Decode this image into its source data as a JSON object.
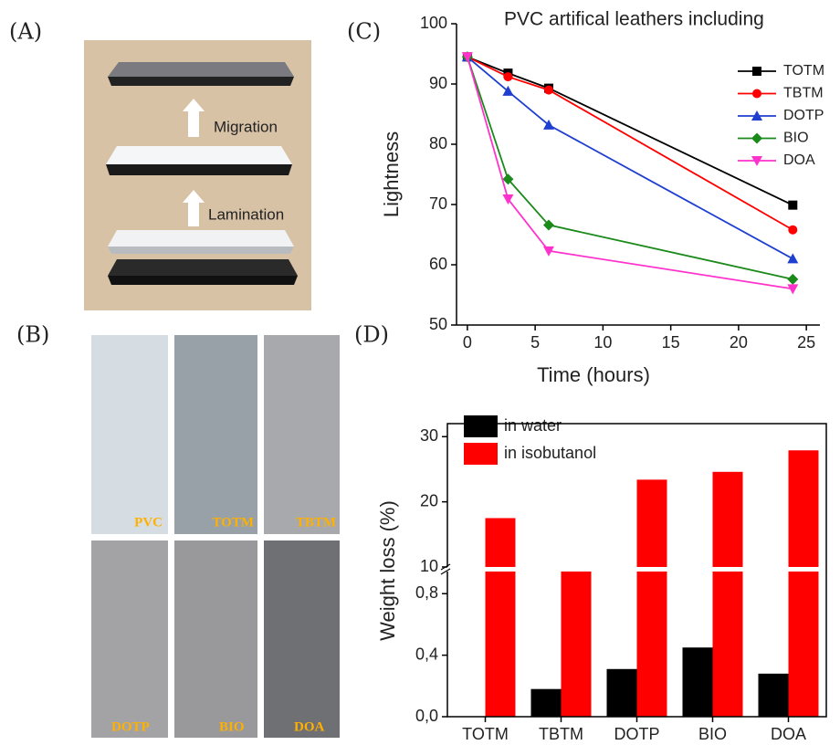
{
  "panel_labels": [
    "(A)",
    "(B)",
    "(C)",
    "(D)"
  ],
  "diagram": {
    "steps": [
      "Migration",
      "Lamination"
    ]
  },
  "samples": {
    "labels": [
      "PVC",
      "TOTM",
      "TBTM",
      "DOTP",
      "BIO",
      "DOA"
    ]
  },
  "chart_data": [
    {
      "type": "line",
      "title": "PVC artifical leathers including",
      "x_label": "Time (hours)",
      "y_label": "Lightness",
      "x": [
        0,
        3,
        6,
        24
      ],
      "series": [
        {
          "name": "TOTM",
          "color": "#000000",
          "marker": "square",
          "values": [
            94.5,
            91.8,
            89.3,
            69.9
          ]
        },
        {
          "name": "TBTM",
          "color": "#ff0000",
          "marker": "circle",
          "values": [
            94.5,
            91.2,
            89.0,
            65.8
          ]
        },
        {
          "name": "DOTP",
          "color": "#1f3fd0",
          "marker": "triangle-up",
          "values": [
            94.5,
            88.8,
            83.2,
            61.0
          ]
        },
        {
          "name": "BIO",
          "color": "#1a8a1a",
          "marker": "diamond",
          "values": [
            94.5,
            74.2,
            66.6,
            57.6
          ]
        },
        {
          "name": "DOA",
          "color": "#ff33cc",
          "marker": "triangle-down",
          "values": [
            94.5,
            70.9,
            62.3,
            56.0
          ]
        }
      ],
      "xlim": [
        -0.8,
        26
      ],
      "xticks": [
        0,
        5,
        10,
        15,
        20,
        25
      ],
      "ylim": [
        50,
        100
      ],
      "yticks": [
        50,
        60,
        70,
        80,
        90,
        100
      ],
      "legend": "upper right"
    },
    {
      "type": "bar",
      "y_label": "Weight loss (%)",
      "categories": [
        "TOTM",
        "TBTM",
        "DOTP",
        "BIO",
        "DOA"
      ],
      "series": [
        {
          "name": "in water",
          "color": "#000000",
          "values": [
            0,
            0.18,
            0.31,
            0.45,
            0.28
          ]
        },
        {
          "name": "in isobutanol",
          "color": "#ff0000",
          "values": [
            17.5,
            9.6,
            23.4,
            24.6,
            27.9
          ]
        }
      ],
      "ylim": [
        0,
        32
      ],
      "ybreak": [
        0.95,
        10
      ],
      "yticks": [
        {
          "value": 0,
          "label": "0,0"
        },
        {
          "value": 0.4,
          "label": "0,4"
        },
        {
          "value": 0.8,
          "label": "0,8"
        },
        10,
        20,
        30
      ],
      "legend": "upper left"
    }
  ]
}
